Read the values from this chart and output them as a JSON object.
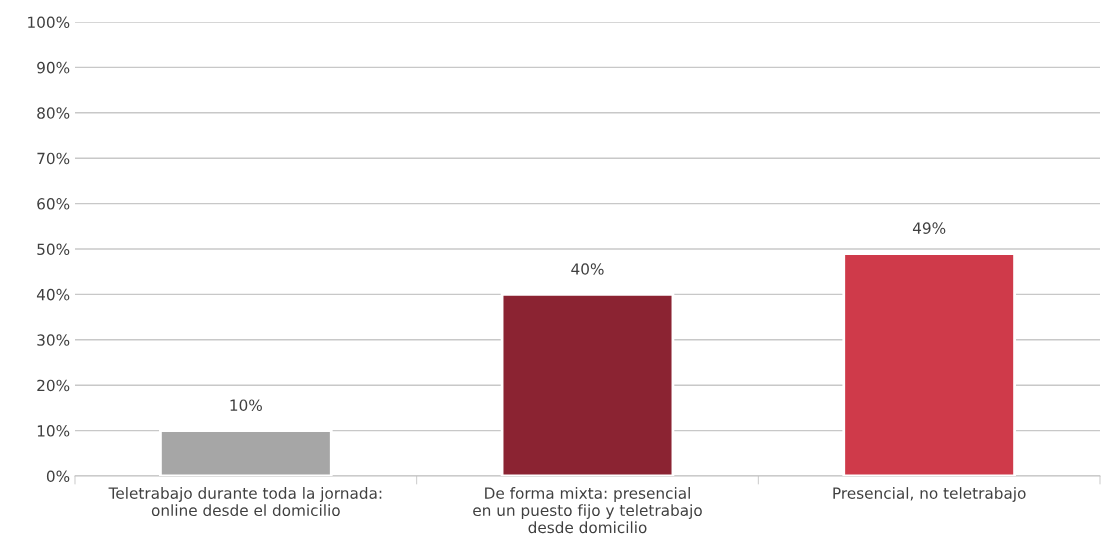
{
  "chart_data": {
    "type": "bar",
    "categories": [
      "Teletrabajo durante toda la jornada:\nonline desde el domicilio",
      "De forma mixta: presencial\nen un puesto fijo y teletrabajo\ndesde domicilio",
      "Presencial, no teletrabajo"
    ],
    "values": [
      10,
      40,
      49
    ],
    "colors": [
      "#a6a6a6",
      "#8b2332",
      "#cf3a4a"
    ],
    "value_labels": [
      "10%",
      "40%",
      "49%"
    ],
    "ylim": [
      0,
      100
    ],
    "yticks": [
      {
        "value": 0,
        "label": "0%"
      },
      {
        "value": 10,
        "label": "10%"
      },
      {
        "value": 20,
        "label": "20%"
      },
      {
        "value": 30,
        "label": "30%"
      },
      {
        "value": 40,
        "label": "40%"
      },
      {
        "value": 50,
        "label": "50%"
      },
      {
        "value": 60,
        "label": "60%"
      },
      {
        "value": 70,
        "label": "70%"
      },
      {
        "value": 80,
        "label": "80%"
      },
      {
        "value": 90,
        "label": "90%"
      },
      {
        "value": 100,
        "label": "100%"
      }
    ],
    "grid": "y",
    "legend": false
  }
}
